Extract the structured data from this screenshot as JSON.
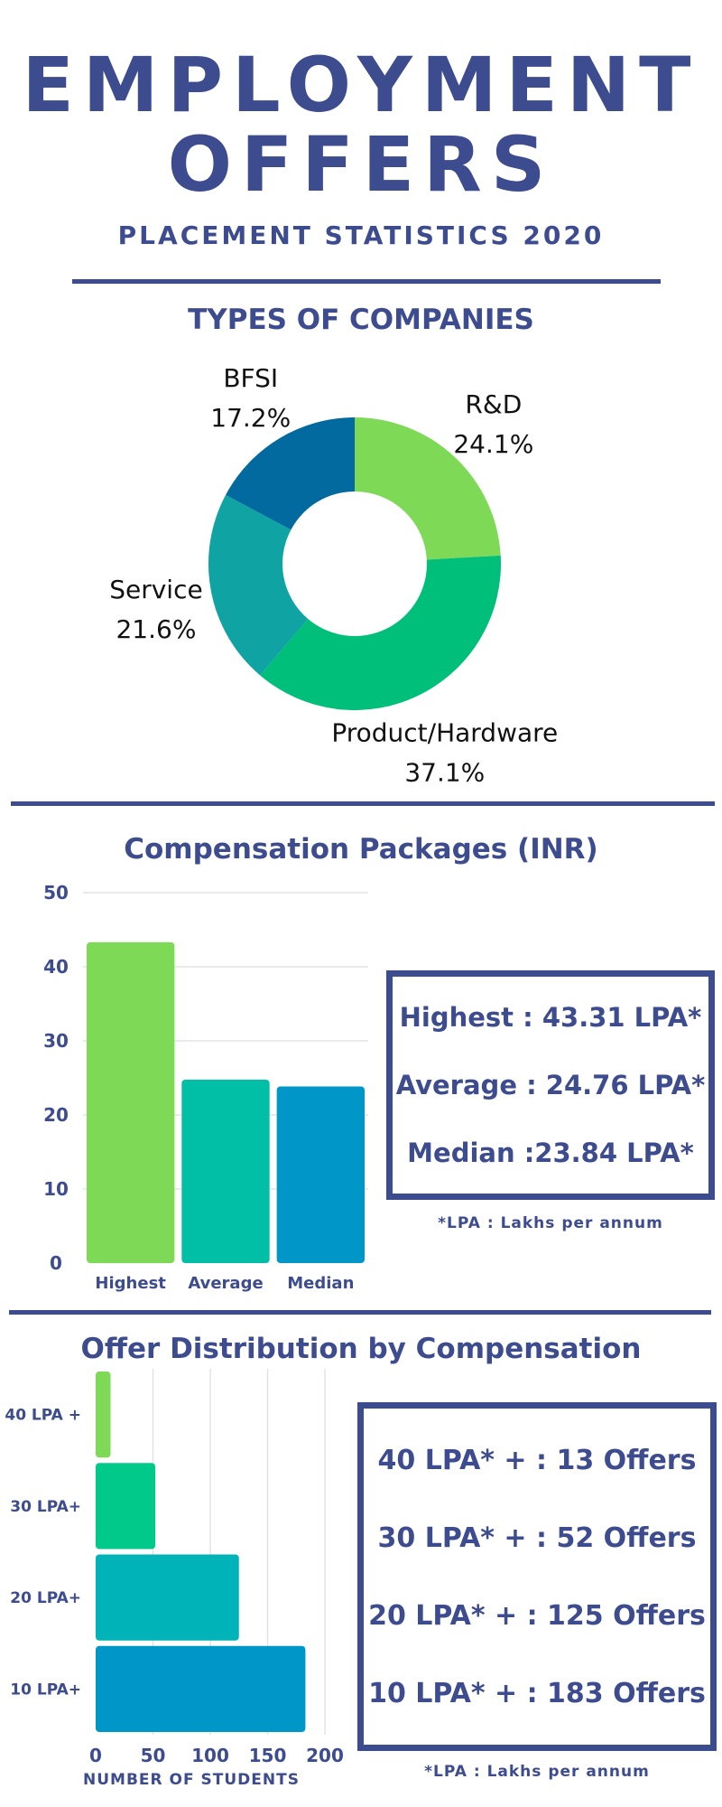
{
  "header": {
    "title_line1": "EMPLOYMENT",
    "title_line2": "OFFERS",
    "subtitle": "PLACEMENT STATISTICS 2020"
  },
  "colors": {
    "navy": "#3d4b8f",
    "green": "#7ed957",
    "emerald": "#00bf7a",
    "teal": "#0fa3a3",
    "sea": "#00bfa6",
    "blue": "#0097c8",
    "deep_blue": "#026a9e"
  },
  "companies": {
    "title": "TYPES OF COMPANIES"
  },
  "compensation": {
    "title": "Compensation Packages (INR)",
    "box": {
      "highest": "Highest : 43.31 LPA*",
      "average": "Average : 24.76 LPA*",
      "median": "Median :23.84 LPA*"
    },
    "note": "*LPA : Lakhs per annum"
  },
  "distribution": {
    "title": "Offer Distribution by Compensation",
    "box": {
      "l40": "40 LPA* + : 13  Offers",
      "l30": "30 LPA* + : 52 Offers",
      "l20": "20 LPA* + : 125 Offers",
      "l10": "10 LPA* + : 183 Offers"
    },
    "note": "*LPA : Lakhs per annum"
  },
  "chart_data": [
    {
      "type": "pie",
      "title": "TYPES OF COMPANIES",
      "categories": [
        "R&D",
        "Product/Hardware",
        "Service",
        "BFSI"
      ],
      "values": [
        24.1,
        37.1,
        21.6,
        17.2
      ],
      "labels": [
        "24.1%",
        "37.1%",
        "21.6%",
        "17.2%"
      ],
      "colors": [
        "#7ed957",
        "#00bf7a",
        "#0fa3a3",
        "#026a9e"
      ],
      "donut": true
    },
    {
      "type": "bar",
      "title": "Compensation Packages (INR)",
      "categories": [
        "Highest",
        "Average",
        "Median"
      ],
      "values": [
        43.31,
        24.76,
        23.84
      ],
      "ylim": [
        0,
        50
      ],
      "yticks": [
        0,
        10,
        20,
        30,
        40,
        50
      ],
      "colors": [
        "#7ed957",
        "#00bfa6",
        "#0097c8"
      ],
      "grid": true
    },
    {
      "type": "bar",
      "orientation": "horizontal",
      "title": "Offer Distribution by Compensation",
      "categories": [
        "40 LPA +",
        "30 LPA+",
        "20 LPA+",
        "10 LPA+"
      ],
      "values": [
        13,
        52,
        125,
        183
      ],
      "xlim": [
        0,
        200
      ],
      "xticks": [
        0,
        50,
        100,
        150,
        200
      ],
      "xlabel": "NUMBER OF STUDENTS",
      "colors": [
        "#7ed957",
        "#00c98a",
        "#00b3b8",
        "#0097c8"
      ],
      "grid": true
    }
  ]
}
